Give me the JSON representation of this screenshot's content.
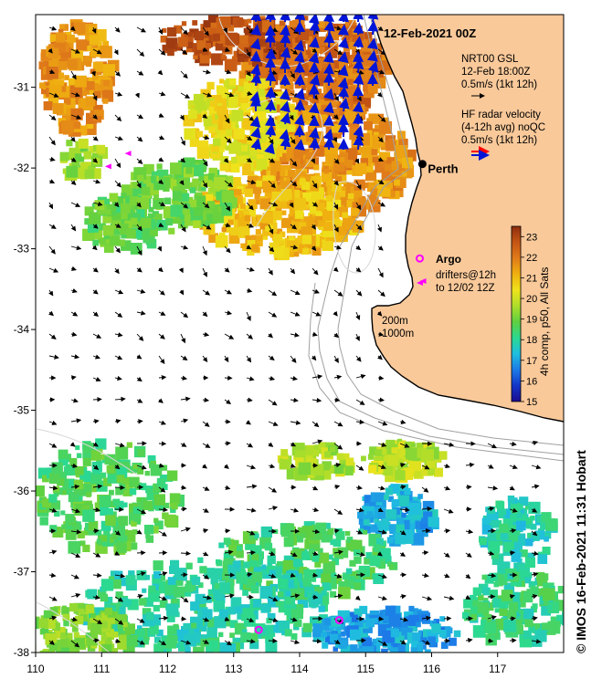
{
  "map": {
    "title": "12-Feb-2021 00Z",
    "lon_range": [
      110,
      118
    ],
    "lat_range": [
      -38,
      -30.1
    ],
    "x_ticks": [
      110,
      111,
      112,
      113,
      114,
      115,
      116,
      117
    ],
    "y_ticks": [
      -31,
      -32,
      -33,
      -34,
      -35,
      -36,
      -37,
      -38
    ],
    "city": {
      "name": "Perth",
      "lon": 115.86,
      "lat": -31.95
    },
    "legend": {
      "model_line1": "NRT00 GSL",
      "model_line2": "12-Feb 18:00Z",
      "model_scale": "0.5m/s (1kt 12h)",
      "radar_line1": "HF radar velocity",
      "radar_line2": "(4-12h avg) noQC",
      "radar_scale": "0.5m/s (1kt 12h)"
    },
    "argo_label": "Argo",
    "drifter_line1": "drifters@12h",
    "drifter_line2": "to 12/02 12Z",
    "isobath_200": "200m",
    "isobath_1000": "1000m",
    "argo_floats": [
      {
        "lon": 115.82,
        "lat": -33.12
      },
      {
        "lon": 113.38,
        "lat": -37.72
      },
      {
        "lon": 114.6,
        "lat": -37.6
      }
    ],
    "drifters": [
      {
        "lon": 111.05,
        "lat": -31.98
      },
      {
        "lon": 111.35,
        "lat": -31.82
      },
      {
        "lon": 115.82,
        "lat": -33.4
      }
    ]
  },
  "colorbar": {
    "label": "4h comp, p50, All Sats",
    "min": 15,
    "max": 23.5,
    "ticks": [
      15,
      16,
      17,
      18,
      19,
      20,
      21,
      22,
      23
    ],
    "colors": [
      "#1a0b8e",
      "#1336c8",
      "#1c7be8",
      "#1fbfe0",
      "#2cd98f",
      "#5fd040",
      "#aede2a",
      "#efe31c",
      "#f0b010",
      "#e07b1a",
      "#c45514",
      "#8e2f10"
    ]
  },
  "credit": "© IMOS 16-Feb-2021 11:31 Hobart",
  "colors": {
    "land": "#f9c99a",
    "coast": "#000000",
    "isobath": "#a0a0a0",
    "contour": "#d8d8d8",
    "model_arrow": "#000000",
    "radar_arrow_blue": "#0015d6",
    "radar_arrow_red": "#ff0000",
    "argo": "#ff00ff"
  }
}
